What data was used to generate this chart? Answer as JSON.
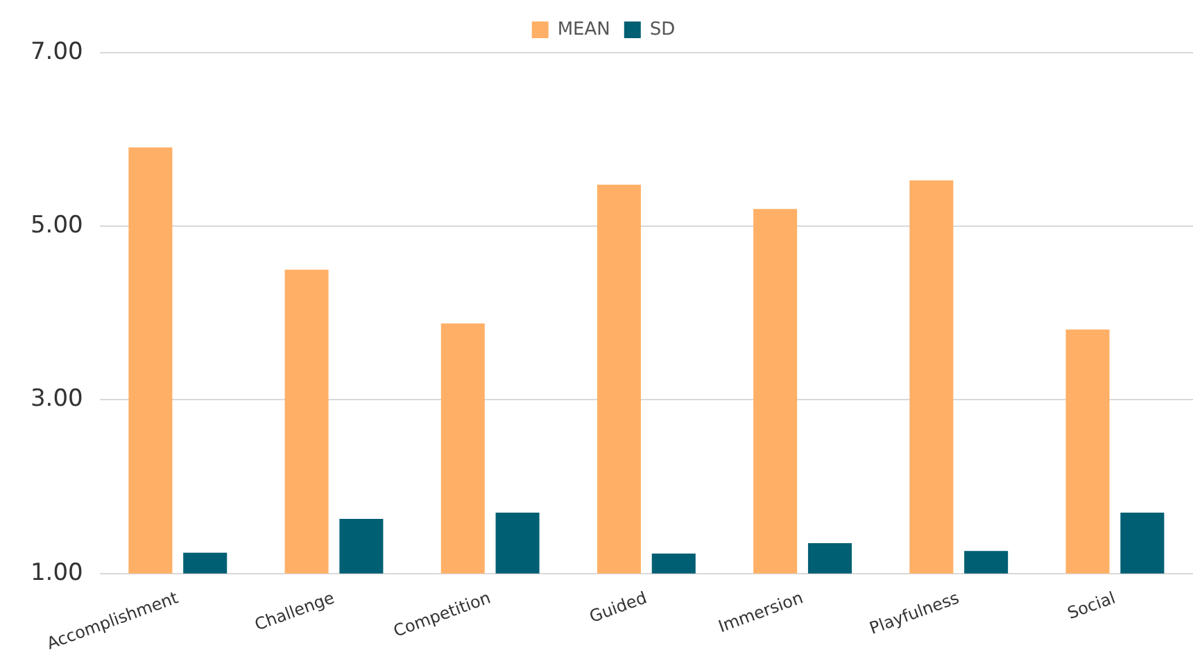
{
  "chart_data": {
    "type": "bar",
    "categories": [
      "Accomplishment",
      "Challenge",
      "Competition",
      "Guided",
      "Immersion",
      "Playfulness",
      "Social"
    ],
    "series": [
      {
        "name": "MEAN",
        "color": "#ffb066",
        "values": [
          5.91,
          4.5,
          3.88,
          5.48,
          5.2,
          5.53,
          3.81
        ]
      },
      {
        "name": "SD",
        "color": "#005f73",
        "values": [
          1.24,
          1.63,
          1.7,
          1.23,
          1.35,
          1.26,
          1.7
        ]
      }
    ],
    "ylim": [
      1,
      7
    ],
    "yticks": [
      {
        "value": 1,
        "label": "1.00"
      },
      {
        "value": 3,
        "label": "3.00"
      },
      {
        "value": 5,
        "label": "5.00"
      },
      {
        "value": 7,
        "label": "7.00"
      }
    ],
    "grid": "y",
    "legend": "top"
  }
}
